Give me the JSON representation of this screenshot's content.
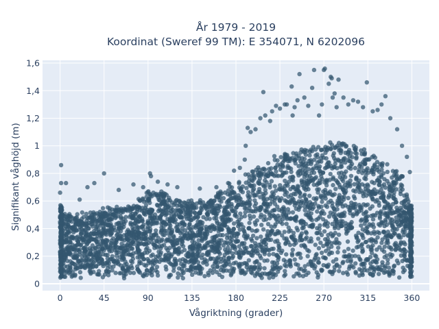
{
  "chart_data": {
    "type": "scatter",
    "title_lines": [
      "År 1979 - 2019",
      "Koordinat (Sweref 99 TM): E 354071, N 6202096"
    ],
    "xlabel": "Vågriktning (grader)",
    "ylabel": "Signifikant våghöjd (m)",
    "xlim": [
      -18,
      378
    ],
    "ylim": [
      -0.05,
      1.62
    ],
    "xticks": [
      0,
      45,
      90,
      135,
      180,
      225,
      270,
      315,
      360
    ],
    "xtick_labels": [
      "0",
      "45",
      "90",
      "135",
      "180",
      "225",
      "270",
      "315",
      "360"
    ],
    "yticks": [
      0,
      0.2,
      0.4,
      0.6,
      0.8,
      1.0,
      1.2,
      1.4,
      1.6
    ],
    "ytick_labels": [
      "0",
      "0,2",
      "0,4",
      "0,6",
      "0,8",
      "1",
      "1,2",
      "1,4",
      "1,6"
    ],
    "grid": true,
    "colors": {
      "marker": "#33566f",
      "plot_bg": "#e5ecf6",
      "grid": "#ffffff",
      "text": "#2a3f5f"
    },
    "upper_envelope": {
      "x": [
        0,
        10,
        20,
        30,
        40,
        50,
        60,
        70,
        80,
        90,
        100,
        110,
        120,
        130,
        140,
        150,
        160,
        170,
        180,
        190,
        200,
        210,
        220,
        230,
        240,
        250,
        260,
        270,
        280,
        290,
        300,
        310,
        320,
        330,
        340,
        350,
        360
      ],
      "y": [
        0.55,
        0.5,
        0.5,
        0.52,
        0.53,
        0.55,
        0.55,
        0.57,
        0.6,
        0.66,
        0.67,
        0.65,
        0.62,
        0.6,
        0.6,
        0.61,
        0.64,
        0.7,
        0.74,
        0.78,
        0.83,
        0.88,
        0.92,
        0.95,
        0.96,
        0.98,
        1.0,
        1.02,
        1.03,
        1.02,
        1.0,
        0.98,
        0.93,
        0.88,
        0.84,
        0.8,
        0.55
      ]
    },
    "lower_bound": 0.05,
    "outliers": [
      [
        1,
        0.86
      ],
      [
        1,
        0.73
      ],
      [
        6,
        0.73
      ],
      [
        0,
        0.66
      ],
      [
        20,
        0.61
      ],
      [
        45,
        0.8
      ],
      [
        28,
        0.7
      ],
      [
        35,
        0.73
      ],
      [
        60,
        0.68
      ],
      [
        75,
        0.72
      ],
      [
        85,
        0.7
      ],
      [
        92,
        0.8
      ],
      [
        93,
        0.78
      ],
      [
        100,
        0.74
      ],
      [
        110,
        0.72
      ],
      [
        120,
        0.7
      ],
      [
        143,
        0.69
      ],
      [
        160,
        0.7
      ],
      [
        172,
        0.73
      ],
      [
        178,
        0.82
      ],
      [
        184,
        0.84
      ],
      [
        189,
        0.9
      ],
      [
        190,
        1.0
      ],
      [
        195,
        1.1
      ],
      [
        192,
        1.13
      ],
      [
        200,
        1.12
      ],
      [
        205,
        1.2
      ],
      [
        208,
        1.39
      ],
      [
        210,
        1.22
      ],
      [
        215,
        1.18
      ],
      [
        217,
        1.25
      ],
      [
        221,
        1.29
      ],
      [
        225,
        1.27
      ],
      [
        230,
        1.3
      ],
      [
        232,
        1.3
      ],
      [
        237,
        1.43
      ],
      [
        238,
        1.22
      ],
      [
        240,
        1.28
      ],
      [
        243,
        1.33
      ],
      [
        245,
        1.52
      ],
      [
        250,
        1.35
      ],
      [
        254,
        1.29
      ],
      [
        258,
        1.42
      ],
      [
        260,
        1.55
      ],
      [
        265,
        1.22
      ],
      [
        268,
        1.3
      ],
      [
        270,
        1.55
      ],
      [
        271,
        1.56
      ],
      [
        275,
        1.45
      ],
      [
        277,
        1.5
      ],
      [
        278,
        1.49
      ],
      [
        279,
        1.35
      ],
      [
        281,
        1.38
      ],
      [
        283,
        1.28
      ],
      [
        285,
        1.48
      ],
      [
        290,
        1.35
      ],
      [
        295,
        1.3
      ],
      [
        300,
        1.33
      ],
      [
        305,
        1.32
      ],
      [
        310,
        1.28
      ],
      [
        314,
        1.46
      ],
      [
        320,
        1.25
      ],
      [
        325,
        1.26
      ],
      [
        329,
        1.3
      ],
      [
        333,
        1.36
      ],
      [
        338,
        1.2
      ],
      [
        345,
        1.12
      ],
      [
        350,
        1.0
      ],
      [
        355,
        0.92
      ],
      [
        358,
        0.81
      ]
    ]
  }
}
